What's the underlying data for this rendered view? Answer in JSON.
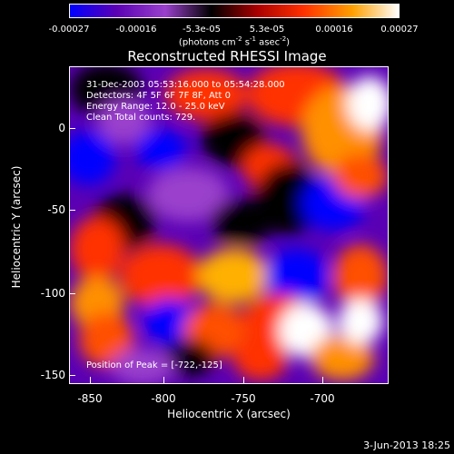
{
  "colorbar": {
    "ticks": [
      "-0.00027",
      "-0.00016",
      "-5.3e-05",
      "5.3e-05",
      "0.00016",
      "0.00027"
    ],
    "unit_parts": [
      "(photons cm",
      "-2",
      " s",
      "-1",
      " asec",
      "-2",
      ")"
    ]
  },
  "title": "Reconstructed RHESSI Image",
  "info": {
    "time_range": "31-Dec-2003 05:53:16.000 to 05:54:28.000",
    "detectors": "Detectors: 4F 5F 6F 7F 8F, Att 0",
    "energy_range": "Energy Range: 12.0 - 25.0 keV",
    "clean": "Clean    Total counts: 729.",
    "peak": "Position of Peak = [-722,-125]"
  },
  "axes": {
    "xlabel": "Heliocentric X (arcsec)",
    "ylabel": "Heliocentric Y (arcsec)",
    "xticks": [
      "-850",
      "-800",
      "-750",
      "-700"
    ],
    "yticks": [
      "0",
      "-50",
      "-100",
      "-150"
    ],
    "xrange": [
      -865,
      -665
    ],
    "yrange": [
      -155,
      20
    ]
  },
  "datestamp": "3-Jun-2013 18:25",
  "colors": {
    "cmap": [
      "#0000ff",
      "#5a00b4",
      "#9a40cc",
      "#000000",
      "#aa0000",
      "#ff3000",
      "#ffa000",
      "#ffffff"
    ]
  }
}
